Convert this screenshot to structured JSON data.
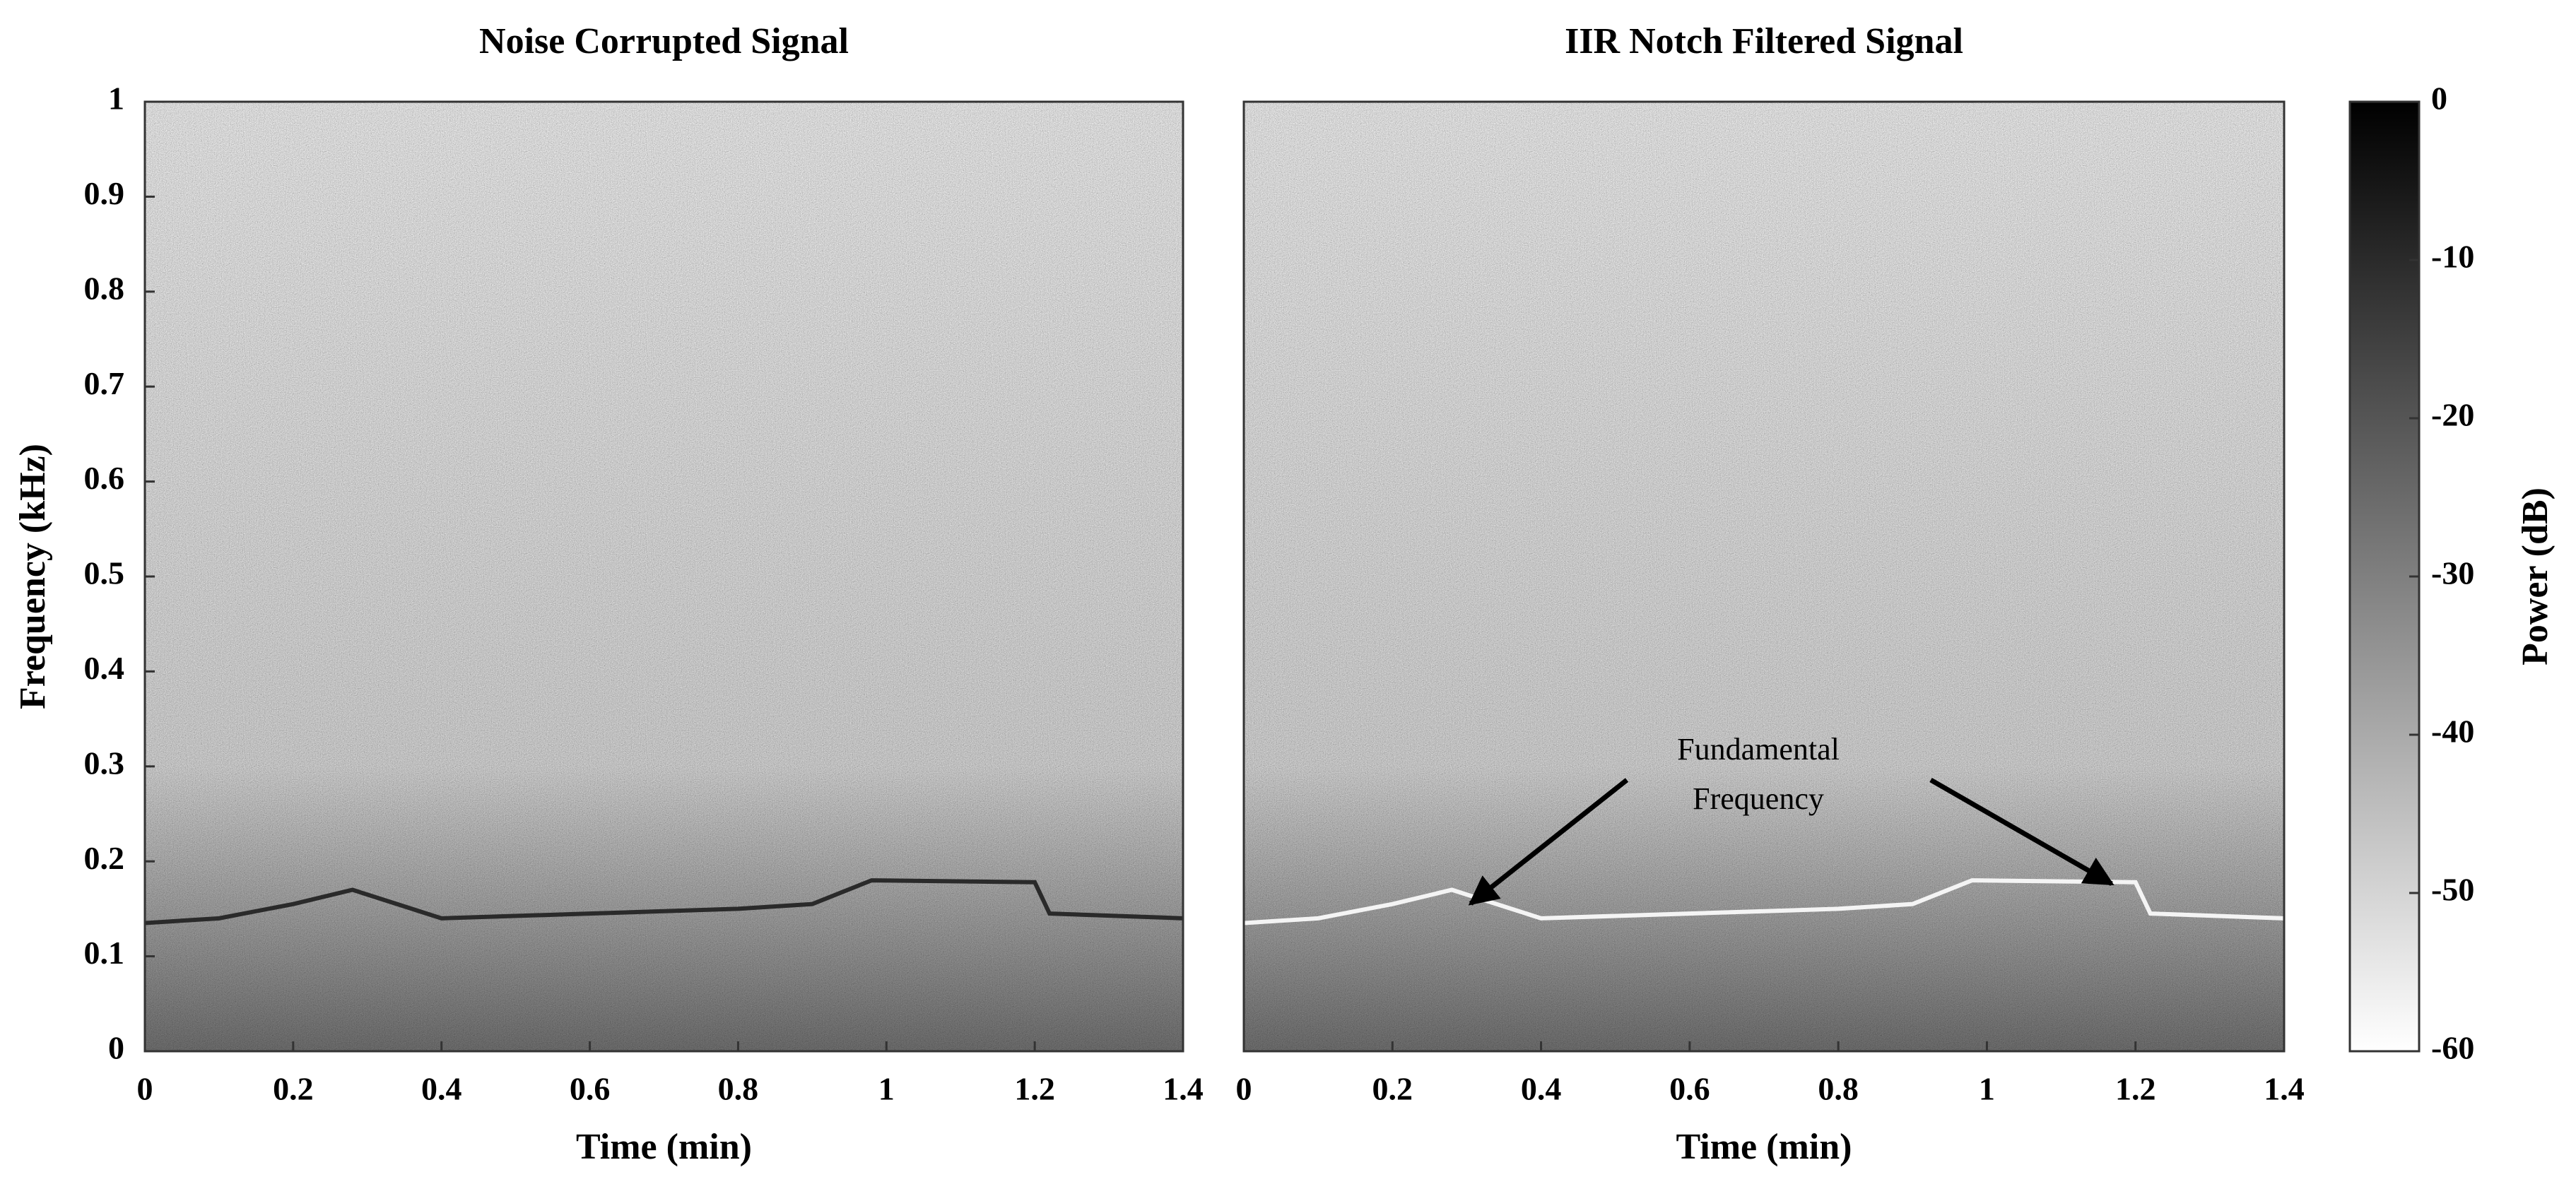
{
  "chart_data": [
    {
      "type": "spectrogram",
      "title": "Noise Corrupted Signal",
      "xlabel": "Time (min)",
      "ylabel": "Frequency (kHz)",
      "xlim": [
        0,
        1.4
      ],
      "xticks": [
        0,
        0.2,
        0.4,
        0.6,
        0.8,
        1,
        1.2,
        1.4
      ],
      "ylim": [
        0,
        1
      ],
      "yticks": [
        0,
        0.1,
        0.2,
        0.3,
        0.4,
        0.5,
        0.6,
        0.7,
        0.8,
        0.9,
        1
      ],
      "x": [
        0,
        0.1,
        0.2,
        0.28,
        0.4,
        0.6,
        0.8,
        0.9,
        0.98,
        1.2,
        1.22,
        1.4
      ],
      "values": [
        0.135,
        0.14,
        0.155,
        0.17,
        0.14,
        0.145,
        0.15,
        0.155,
        0.18,
        0.178,
        0.145,
        0.14
      ],
      "color": "#2a2a2a"
    },
    {
      "type": "spectrogram",
      "title": "IIR Notch Filtered Signal",
      "xlabel": "Time (min)",
      "xlim": [
        0,
        1.4
      ],
      "xticks": [
        0,
        0.2,
        0.4,
        0.6,
        0.8,
        1,
        1.2,
        1.4
      ],
      "ylim": [
        0,
        1
      ],
      "x": [
        0,
        0.1,
        0.2,
        0.28,
        0.4,
        0.6,
        0.8,
        0.9,
        0.98,
        1.2,
        1.22,
        1.4
      ],
      "values": [
        0.135,
        0.14,
        0.155,
        0.17,
        0.14,
        0.145,
        0.15,
        0.155,
        0.18,
        0.178,
        0.145,
        0.14
      ],
      "color": "#f4f4f4",
      "annotation": [
        "Fundamental",
        "Frequency"
      ],
      "colorbar": {
        "label": "Power (dB)",
        "lim": [
          -60,
          0
        ],
        "ticks": [
          0,
          -10,
          -20,
          -30,
          -40,
          -50,
          -60
        ],
        "colormap": [
          "#ffffff",
          "#000000"
        ]
      }
    }
  ]
}
